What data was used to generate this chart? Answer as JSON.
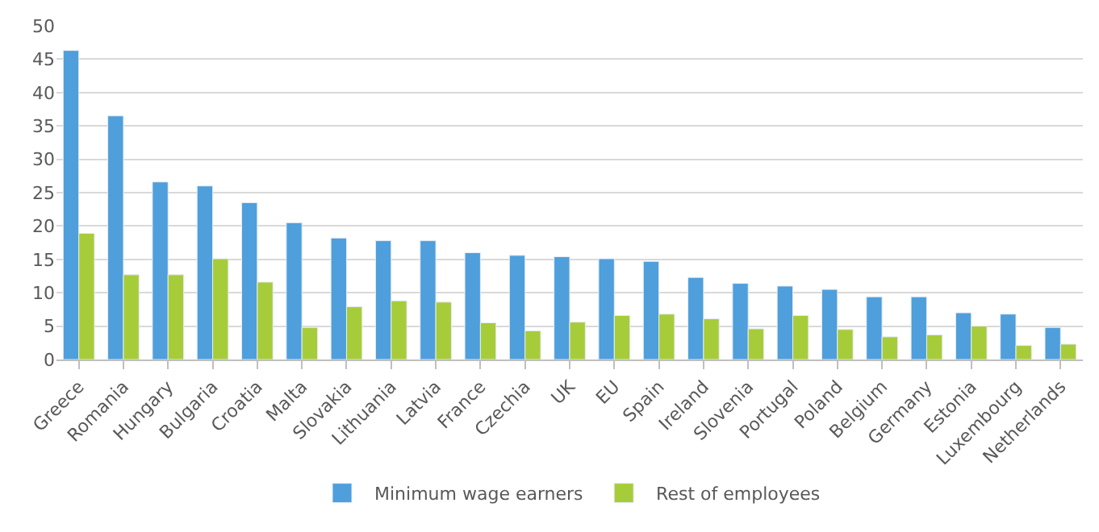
{
  "chart_data": {
    "type": "bar",
    "categories": [
      "Greece",
      "Romania",
      "Hungary",
      "Bulgaria",
      "Croatia",
      "Malta",
      "Slovakia",
      "Lithuania",
      "Latvia",
      "France",
      "Czechia",
      "UK",
      "EU",
      "Spain",
      "Ireland",
      "Slovenia",
      "Portugal",
      "Poland",
      "Belgium",
      "Germany",
      "Estonia",
      "Luxembourg",
      "Netherlands"
    ],
    "series": [
      {
        "name": "Minimum wage earners",
        "color": "#4e9fdb",
        "values": [
          46.3,
          36.5,
          26.6,
          26.0,
          23.5,
          20.5,
          18.2,
          17.8,
          17.8,
          16.0,
          15.6,
          15.4,
          15.1,
          14.7,
          12.3,
          11.4,
          11.0,
          10.5,
          9.4,
          9.4,
          7.0,
          6.8,
          4.8
        ]
      },
      {
        "name": "Rest of employees",
        "color": "#a7cc3a",
        "values": [
          18.9,
          12.7,
          12.7,
          15.1,
          11.6,
          4.8,
          7.9,
          8.8,
          8.6,
          5.5,
          4.3,
          5.6,
          6.6,
          6.8,
          6.1,
          4.6,
          6.6,
          4.5,
          3.4,
          3.7,
          5.0,
          2.1,
          2.3
        ]
      }
    ],
    "ylim": [
      0,
      50
    ],
    "yticks": [
      0,
      5,
      10,
      15,
      20,
      25,
      30,
      35,
      40,
      45,
      50
    ],
    "grid": "y",
    "legend": "bottom"
  }
}
